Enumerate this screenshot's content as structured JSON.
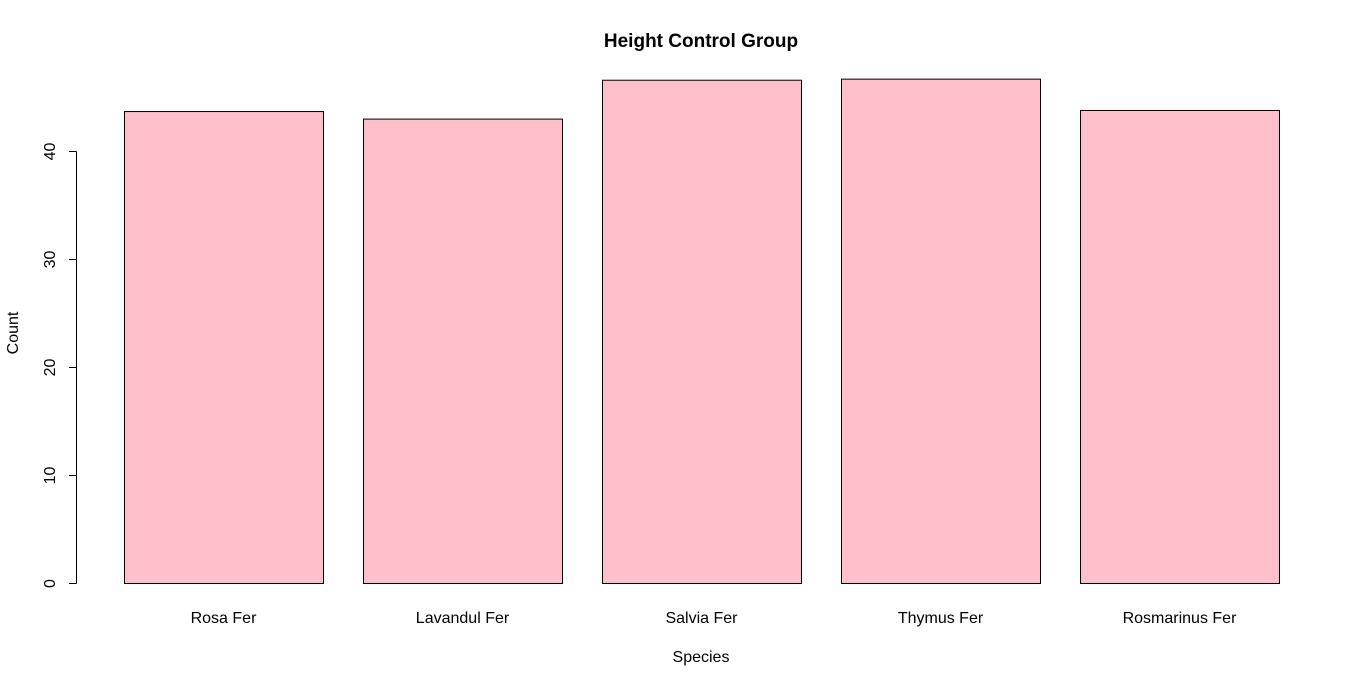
{
  "chart_data": {
    "type": "bar",
    "title": "Height Control Group",
    "xlabel": "Species",
    "ylabel": "Count",
    "categories": [
      "Rosa Fer",
      "Lavandul Fer",
      "Salvia Fer",
      "Thymus Fer",
      "Rosmarinus Fer"
    ],
    "values": [
      43.7,
      43.0,
      46.6,
      46.7,
      43.8
    ],
    "ylim": [
      0,
      50
    ],
    "yticks": [
      0,
      10,
      20,
      30,
      40
    ],
    "bar_color": "#FFC0CB",
    "border_color": "#000000",
    "grid": false,
    "legend": "none"
  }
}
